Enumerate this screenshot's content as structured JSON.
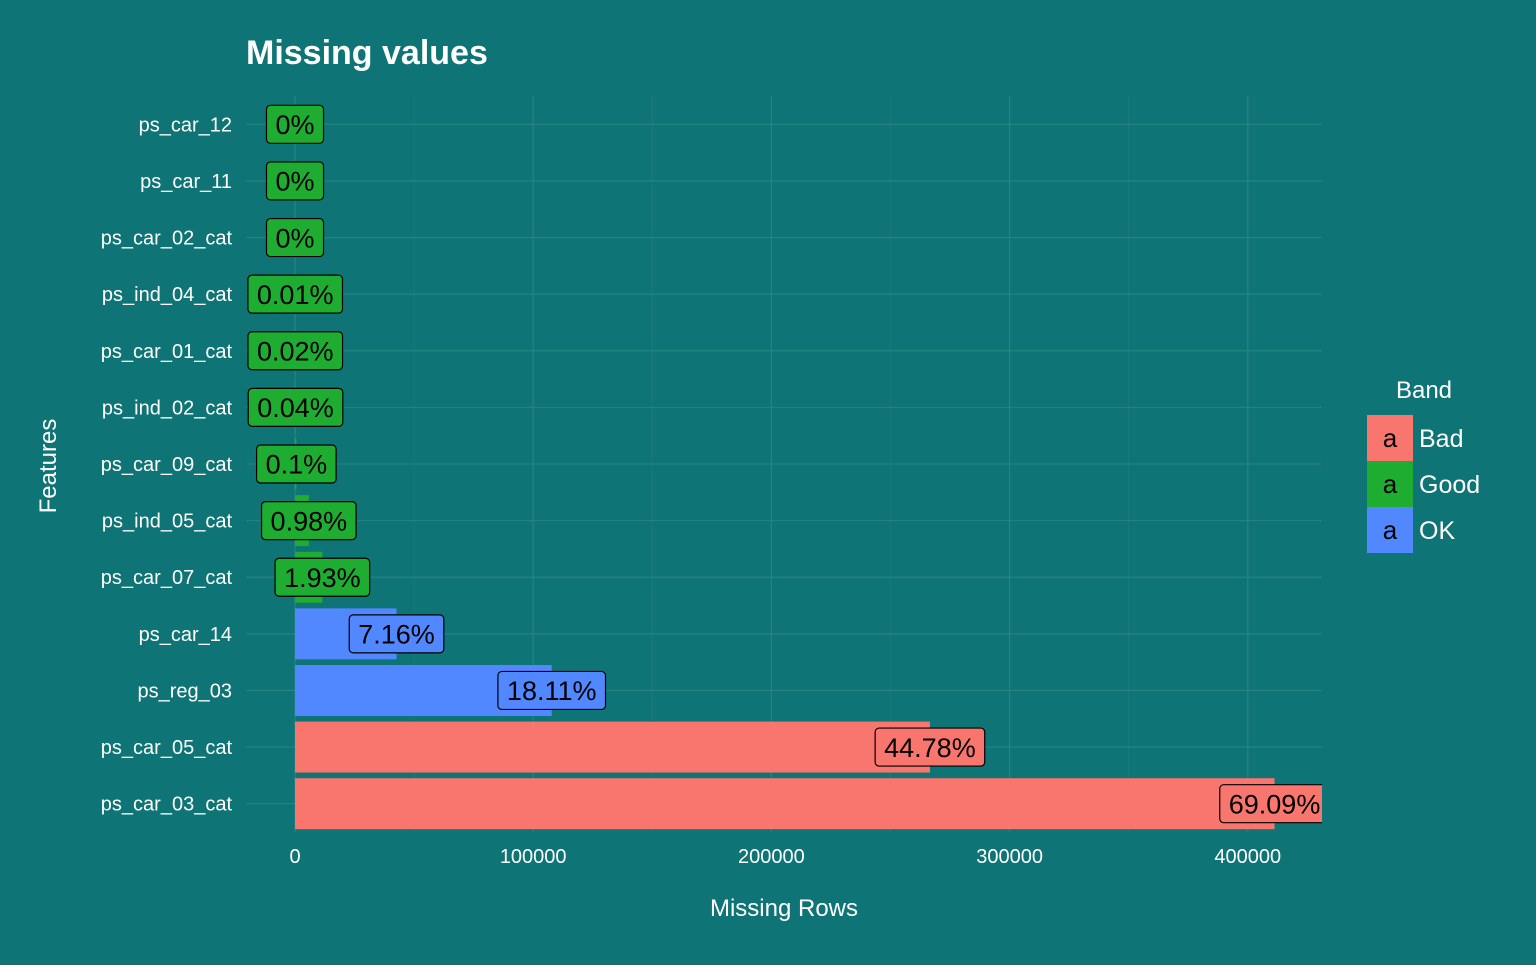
{
  "chart_data": {
    "type": "bar",
    "orientation": "horizontal",
    "title": "Missing values",
    "xlabel": "Missing Rows",
    "ylabel": "Features",
    "xlim": [
      -21000,
      432000
    ],
    "x_ticks": [
      0,
      100000,
      200000,
      300000,
      400000
    ],
    "x_tick_labels": [
      "0",
      "100000",
      "200000",
      "300000",
      "400000"
    ],
    "grid": true,
    "legend": {
      "title": "Band",
      "position": "right",
      "key_glyph": "a",
      "entries": [
        {
          "label": "Bad",
          "color": "#f8766d"
        },
        {
          "label": "Good",
          "color": "#1fad31"
        },
        {
          "label": "OK",
          "color": "#5288ff"
        }
      ]
    },
    "categories": [
      "ps_car_12",
      "ps_car_11",
      "ps_car_02_cat",
      "ps_ind_04_cat",
      "ps_car_01_cat",
      "ps_ind_02_cat",
      "ps_car_09_cat",
      "ps_ind_05_cat",
      "ps_car_07_cat",
      "ps_car_14",
      "ps_reg_03",
      "ps_car_05_cat",
      "ps_car_03_cat"
    ],
    "values": [
      1,
      5,
      5,
      83,
      107,
      216,
      569,
      5809,
      11489,
      42620,
      107772,
      266551,
      411231
    ],
    "labels": [
      "0%",
      "0%",
      "0%",
      "0.01%",
      "0.02%",
      "0.04%",
      "0.1%",
      "0.98%",
      "1.93%",
      "7.16%",
      "18.11%",
      "44.78%",
      "69.09%"
    ],
    "bands": [
      "Good",
      "Good",
      "Good",
      "Good",
      "Good",
      "Good",
      "Good",
      "Good",
      "Good",
      "OK",
      "OK",
      "Bad",
      "Bad"
    ],
    "colors": {
      "background": "#0f7475",
      "grid": "#2a8485",
      "Bad": "#f8766d",
      "Good": "#1fad31",
      "OK": "#5288ff",
      "text": "#ffffff",
      "label_text": "#000000"
    }
  }
}
